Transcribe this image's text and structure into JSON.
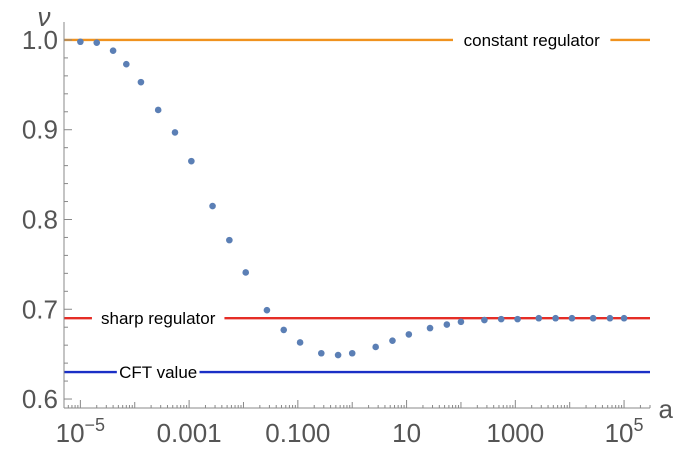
{
  "chart_data": {
    "type": "scatter",
    "x_scale": "log",
    "xlabel": "a",
    "ylabel": "ν",
    "xlim": [
      5e-06,
      300000
    ],
    "ylim": [
      0.59,
      1.02
    ],
    "x_ticks": [
      {
        "value": 1e-05,
        "label": "10",
        "sup": "−5"
      },
      {
        "value": 0.001,
        "label": "0.001",
        "sup": ""
      },
      {
        "value": 0.1,
        "label": "0.100",
        "sup": ""
      },
      {
        "value": 10,
        "label": "10",
        "sup": ""
      },
      {
        "value": 1000,
        "label": "1000",
        "sup": ""
      },
      {
        "value": 100000,
        "label": "10",
        "sup": "5"
      }
    ],
    "y_ticks": [
      {
        "value": 0.6,
        "label": "0.6"
      },
      {
        "value": 0.7,
        "label": "0.7"
      },
      {
        "value": 0.8,
        "label": "0.8"
      },
      {
        "value": 0.9,
        "label": "0.9"
      },
      {
        "value": 1.0,
        "label": "1.0"
      }
    ],
    "series": [
      {
        "color": "#5b7fb5",
        "points": [
          [
            1e-05,
            0.998
          ],
          [
            2e-05,
            0.997
          ],
          [
            4e-05,
            0.988
          ],
          [
            7e-05,
            0.973
          ],
          [
            0.00013,
            0.953
          ],
          [
            0.00027,
            0.922
          ],
          [
            0.00055,
            0.897
          ],
          [
            0.0011,
            0.865
          ],
          [
            0.0027,
            0.815
          ],
          [
            0.0055,
            0.777
          ],
          [
            0.011,
            0.741
          ],
          [
            0.027,
            0.699
          ],
          [
            0.055,
            0.677
          ],
          [
            0.11,
            0.663
          ],
          [
            0.27,
            0.651
          ],
          [
            0.55,
            0.649
          ],
          [
            1.0,
            0.651
          ],
          [
            2.7,
            0.658
          ],
          [
            5.5,
            0.665
          ],
          [
            11,
            0.672
          ],
          [
            27,
            0.679
          ],
          [
            55,
            0.683
          ],
          [
            100,
            0.686
          ],
          [
            270,
            0.688
          ],
          [
            550,
            0.689
          ],
          [
            1100,
            0.689
          ],
          [
            2700,
            0.69
          ],
          [
            5500,
            0.69
          ],
          [
            11000,
            0.69
          ],
          [
            27000,
            0.69
          ],
          [
            55000,
            0.69
          ],
          [
            100000,
            0.69
          ]
        ]
      }
    ],
    "reference_lines": [
      {
        "label": "constant regulator",
        "y": 1.0,
        "color": "#f0921e",
        "label_x": 2000
      },
      {
        "label": "sharp regulator",
        "y": 0.69,
        "color": "#e52d26",
        "label_x": 0.00027
      },
      {
        "label": "CFT value",
        "y": 0.63,
        "color": "#1a2fc6",
        "label_x": 0.00027
      }
    ]
  }
}
